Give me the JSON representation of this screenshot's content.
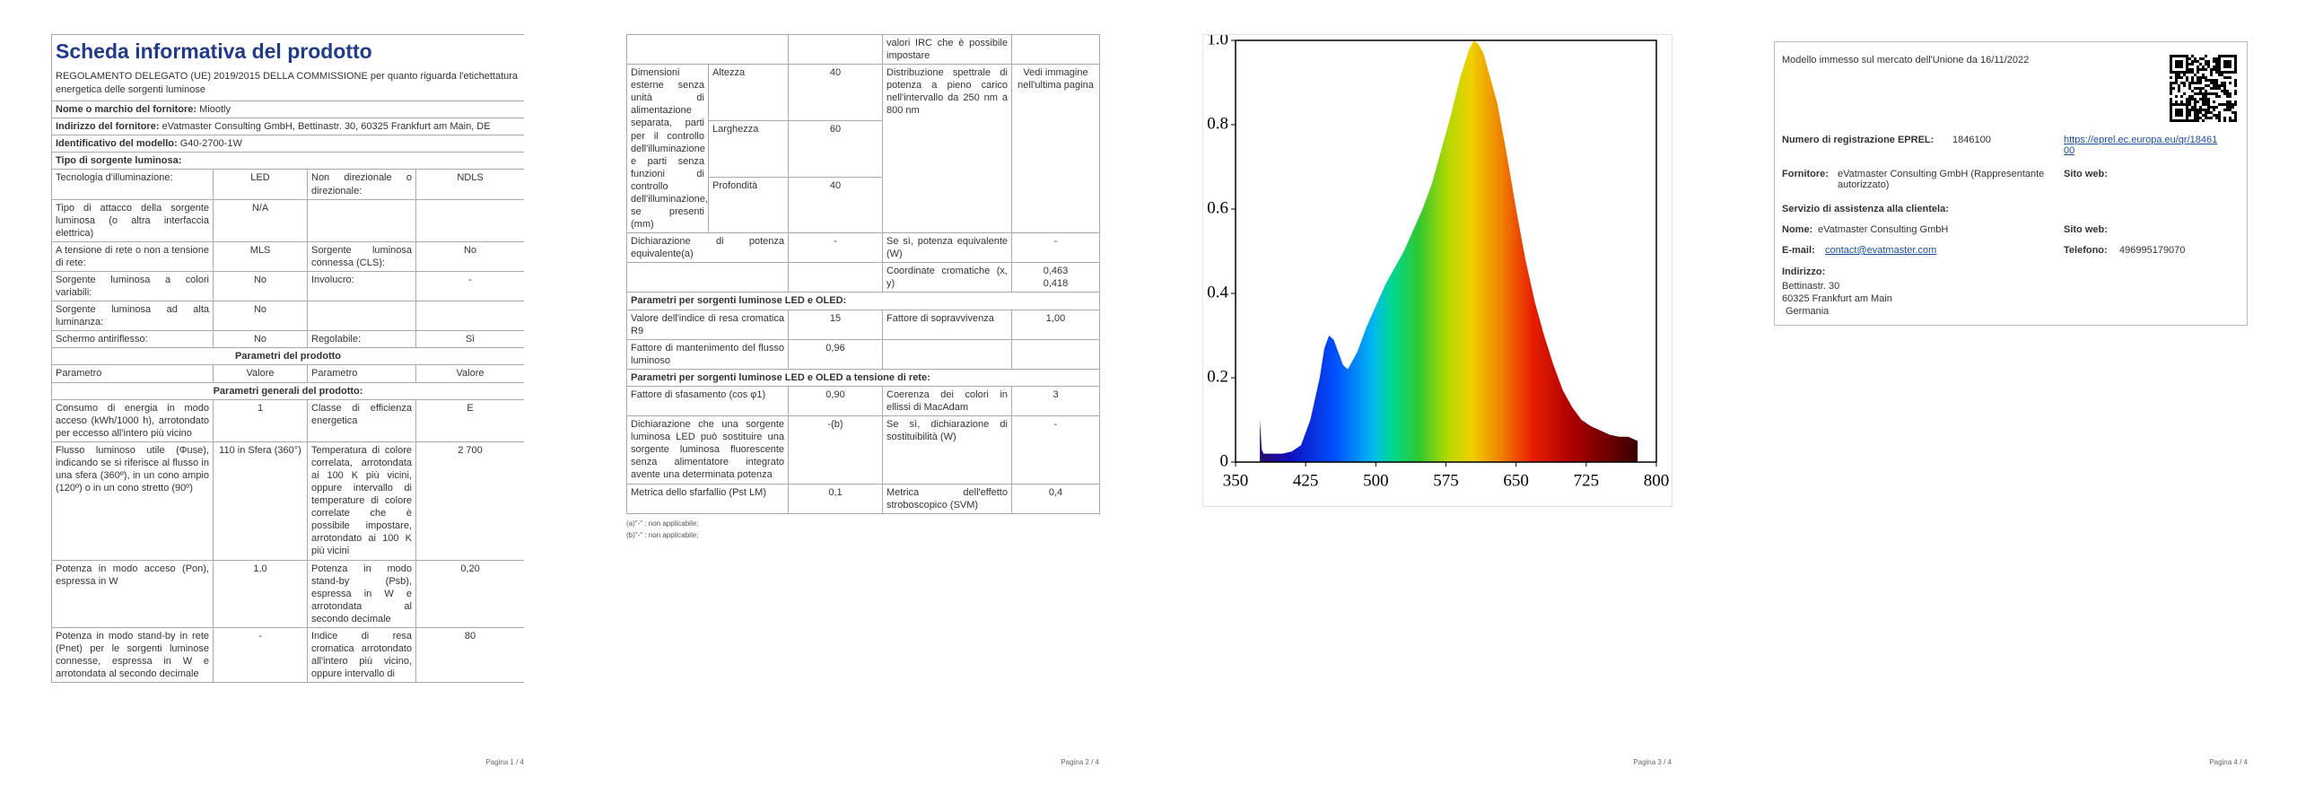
{
  "page1": {
    "title": "Scheda informativa del prodotto",
    "subtitle": "REGOLAMENTO DELEGATO (UE) 2019/2015 DELLA COMMISSIONE per quanto riguarda l'etichettatura energetica delle sorgenti luminose",
    "rows": [
      [
        "Nome o marchio del fornitore:",
        "Miootly"
      ],
      [
        "Indirizzo del fornitore:",
        "eVatmaster Consulting GmbH, Bettinastr. 30, 60325 Frankfurt am Main, DE"
      ],
      [
        "Identificativo del modello:",
        "G40-2700-1W"
      ],
      [
        "Tipo di sorgente luminosa:"
      ],
      [
        "Tecnologia d'illuminazione:",
        "LED",
        "Non direzionale o direzionale:",
        "NDLS"
      ],
      [
        "Tipo di attacco della sorgente luminosa (o altra interfaccia elettrica)",
        "N/A",
        null,
        null
      ],
      [
        "A tensione di rete o non a tensione di rete:",
        "MLS",
        "Sorgente luminosa connessa (CLS):",
        "No"
      ],
      [
        "Sorgente luminosa a colori variabili:",
        "No",
        "Involucro:",
        "-"
      ],
      [
        "Sorgente luminosa ad alta luminanza:",
        "No",
        null,
        null
      ],
      [
        "Schermo antiriflesso:",
        "No",
        "Regolabile:",
        "Sì"
      ],
      [
        "Parametri del prodotto"
      ],
      [
        "Parametro",
        "Valore",
        "Parametro",
        "Valore"
      ],
      [
        "Parametri generali del prodotto:"
      ],
      [
        "Consumo di energia in modo acceso (kWh/1000 h), arrotondato per eccesso all'intero più vicino",
        "1",
        "Classe di efficienza energetica",
        "E"
      ],
      [
        "Flusso luminoso utile (Φuse), indicando se si riferisce al flusso in una sfera (360º), in un cono ampio (120º) o in un cono stretto (90º)",
        "110 in Sfera (360°)",
        "Temperatura di colore correlata, arrotondata ai 100 K più vicini, oppure intervallo di temperature di colore correlate che è possibile impostare, arrotondato ai 100 K più vicini",
        "2 700"
      ],
      [
        "Potenza in modo acceso (Pon), espressa in W",
        "1,0",
        "Potenza in modo stand-by (Psb), espressa in W e arrotondata al secondo decimale",
        "0,20"
      ],
      [
        "Potenza in modo stand-by in rete (Pnet) per le sorgenti luminose connesse, espressa in W e arrotondata al secondo decimale",
        "-",
        "Indice di resa cromatica arrotondato all'intero più vicino, oppure intervallo di",
        "80"
      ]
    ]
  },
  "page2": {
    "rows": [
      [
        null,
        null,
        "valori IRC che è possibile impostare",
        null
      ],
      {
        "label": "Dimensioni esterne senza unità di alimentazione separata, parti per il controllo dell'illuminazione e parti senza funzioni di controllo dell'illuminazione, se presenti (mm)",
        "dims": [
          [
            "Altezza",
            "40"
          ],
          [
            "Larghezza",
            "60"
          ],
          [
            "Profondità",
            "40"
          ]
        ],
        "param": "Distribuzione spettrale di potenza a pieno carico nell'intervallo da 250 nm a 800 nm",
        "value": "Vedi immagine nell'ultima pagina"
      },
      [
        "Dichiarazione di potenza equivalente(a)",
        "-",
        "Se sì, potenza equivalente (W)",
        "-"
      ],
      [
        null,
        null,
        "Coordinate cromatiche (x, y)",
        [
          "0,463",
          "0,418"
        ]
      ],
      [
        "Parametri per sorgenti luminose LED e OLED:"
      ],
      [
        "Valore dell'indice di resa cromatica R9",
        "15",
        "Fattore di sopravvivenza",
        "1,00"
      ],
      [
        "Fattore di mantenimento del flusso luminoso",
        "0,96",
        null,
        null
      ],
      [
        "Parametri per sorgenti luminose LED e OLED a tensione di rete:"
      ],
      [
        "Fattore di sfasamento (cos φ1)",
        "0,90",
        "Coerenza dei colori in ellissi di MacAdam",
        "3"
      ],
      [
        "Dichiarazione che una sorgente luminosa LED può sostituire una sorgente luminosa fluorescente senza alimentatore integrato avente una determinata potenza",
        "-(b)",
        "Se sì, dichiarazione di sostituibilità (W)",
        "-"
      ],
      [
        "Metrica dello sfarfallio (Pst LM)",
        "0,1",
        "Metrica dell'effetto stroboscopico (SVM)",
        "0,4"
      ]
    ],
    "notes": [
      "(a)\"-\" : non applicabile;",
      "(b)\"-\" : non applicabile;"
    ]
  },
  "chart_data": {
    "type": "area",
    "x": [
      376,
      378,
      380,
      390,
      400,
      410,
      420,
      430,
      440,
      445,
      450,
      455,
      460,
      465,
      470,
      480,
      490,
      500,
      510,
      520,
      530,
      540,
      550,
      560,
      570,
      580,
      590,
      600,
      605,
      610,
      615,
      620,
      630,
      640,
      650,
      660,
      670,
      680,
      690,
      700,
      710,
      720,
      730,
      740,
      750,
      760,
      770,
      780
    ],
    "values": [
      0.1,
      0.03,
      0.02,
      0.02,
      0.02,
      0.025,
      0.04,
      0.1,
      0.2,
      0.27,
      0.3,
      0.29,
      0.26,
      0.23,
      0.22,
      0.26,
      0.32,
      0.37,
      0.42,
      0.46,
      0.5,
      0.55,
      0.6,
      0.66,
      0.74,
      0.82,
      0.91,
      0.98,
      1.0,
      0.99,
      0.97,
      0.93,
      0.85,
      0.73,
      0.6,
      0.48,
      0.38,
      0.3,
      0.23,
      0.17,
      0.13,
      0.1,
      0.085,
      0.075,
      0.065,
      0.06,
      0.06,
      0.05
    ],
    "xlim": [
      350,
      800
    ],
    "ylim": [
      0,
      1
    ],
    "xticks": [
      350,
      425,
      500,
      575,
      650,
      725,
      800
    ],
    "yticks": [
      0,
      0.2,
      0.4,
      0.6,
      0.8,
      {
        "value": 1,
        "label": "1.0"
      }
    ]
  },
  "page4": {
    "placed": "Modello immesso sul mercato dell'Unione da 16/11/2022",
    "eprel_label": "Numero di registrazione EPREL:",
    "eprel_value": "1846100",
    "eprel_link": "https://eprel.ec.europa.eu/qr/1846100",
    "supplier_label": "Fornitore:",
    "supplier_value": "eVatmaster Consulting GmbH (Rappresentante autorizzato)",
    "supplier_web_label": "Sito web:",
    "service_title": "Servizio di assistenza alla clientela:",
    "name_label": "Nome:",
    "name_value": "eVatmaster Consulting GmbH",
    "service_web_label": "Sito web:",
    "email_label": "E-mail:",
    "email_value": "contact@evatmaster.com",
    "phone_label": "Telefono:",
    "phone_value": "496995179070",
    "address_label": "Indirizzo:",
    "address_lines": [
      "Bettinastr. 30",
      "60325 Frankfurt am Main",
      "Germania"
    ]
  },
  "footers": [
    "Pagina 1 / 4",
    "Pagina 2 / 4",
    "Pagina 3 / 4",
    "Pagina 4 / 4"
  ]
}
